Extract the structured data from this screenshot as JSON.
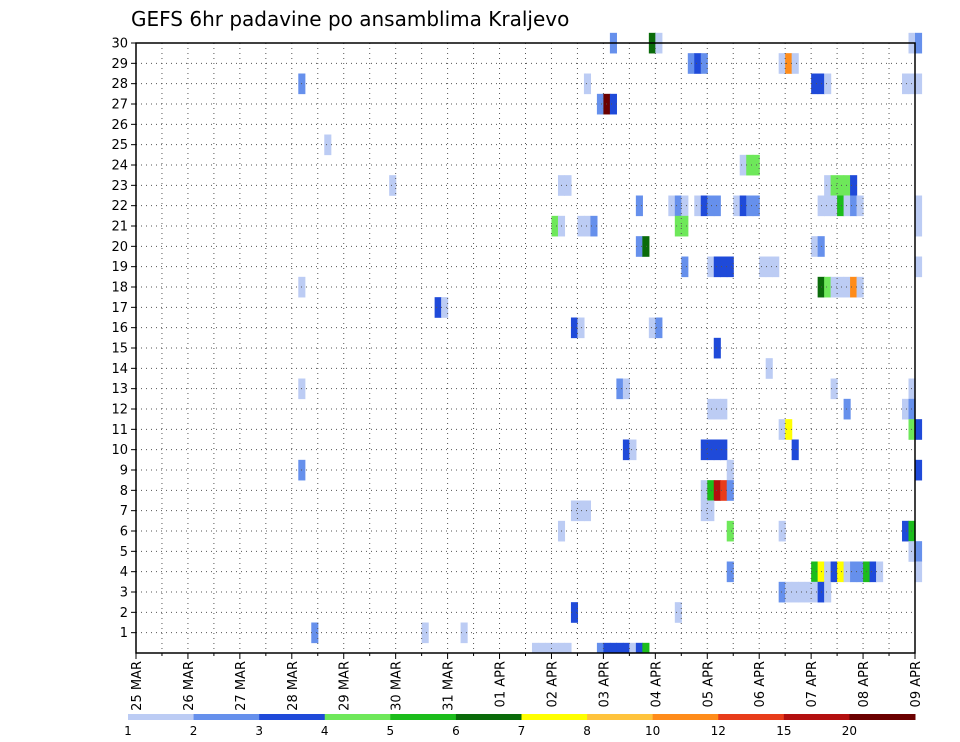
{
  "chart_data": {
    "type": "heatmap",
    "title": "GEFS 6hr padavine po ansamblima Kraljevo",
    "x_ticks": [
      "25 MAR",
      "26 MAR",
      "27 MAR",
      "28 MAR",
      "29 MAR",
      "30 MAR",
      "31 MAR",
      "01 APR",
      "02 APR",
      "03 APR",
      "04 APR",
      "05 APR",
      "06 APR",
      "07 APR",
      "08 APR",
      "09 APR"
    ],
    "y_ticks": [
      "1",
      "2",
      "3",
      "4",
      "5",
      "6",
      "7",
      "8",
      "9",
      "10",
      "11",
      "12",
      "13",
      "14",
      "15",
      "16",
      "17",
      "18",
      "19",
      "20",
      "21",
      "22",
      "23",
      "24",
      "25",
      "26",
      "27",
      "28",
      "29",
      "30"
    ],
    "ylim": [
      0,
      30
    ],
    "time_steps_per_day": 4,
    "n_days": 15,
    "grid": "dotted",
    "colorbar": {
      "labels": [
        "1",
        "2",
        "3",
        "4",
        "5",
        "6",
        "7",
        "8",
        "10",
        "12",
        "15",
        "20"
      ],
      "colors": [
        "#bcccf4",
        "#6690ec",
        "#1f4ad9",
        "#6ee85a",
        "#1cbd1c",
        "#0a6b0a",
        "#ffff00",
        "#ffc33c",
        "#ff8c1a",
        "#e83c1a",
        "#b30f0f",
        "#6b0000"
      ]
    },
    "levels": [
      "1-2",
      "2-3",
      "3-4",
      "4-5",
      "5-6",
      "6-7",
      "7-8",
      "8-10",
      "10-12",
      "12-15",
      "15-20",
      ">20"
    ],
    "cells": [
      [
        30,
        73,
        1
      ],
      [
        30,
        79,
        5
      ],
      [
        30,
        80,
        0
      ],
      [
        30,
        119,
        0
      ],
      [
        30,
        120,
        1
      ],
      [
        29,
        85,
        1
      ],
      [
        29,
        86,
        2
      ],
      [
        29,
        87,
        1
      ],
      [
        29,
        99,
        0
      ],
      [
        29,
        100,
        8
      ],
      [
        29,
        101,
        0
      ],
      [
        28,
        25,
        1
      ],
      [
        28,
        69,
        0
      ],
      [
        28,
        104,
        2
      ],
      [
        28,
        105,
        2
      ],
      [
        28,
        106,
        0
      ],
      [
        28,
        118,
        0
      ],
      [
        28,
        119,
        0
      ],
      [
        28,
        120,
        0
      ],
      [
        27,
        71,
        1
      ],
      [
        27,
        72,
        11
      ],
      [
        27,
        73,
        2
      ],
      [
        25,
        29,
        0
      ],
      [
        24,
        93,
        0
      ],
      [
        24,
        94,
        3
      ],
      [
        24,
        95,
        3
      ],
      [
        23,
        39,
        0
      ],
      [
        23,
        65,
        0
      ],
      [
        23,
        66,
        0
      ],
      [
        23,
        106,
        0
      ],
      [
        23,
        107,
        3
      ],
      [
        23,
        108,
        3
      ],
      [
        23,
        109,
        3
      ],
      [
        23,
        110,
        2
      ],
      [
        22,
        77,
        1
      ],
      [
        22,
        82,
        0
      ],
      [
        22,
        83,
        1
      ],
      [
        22,
        84,
        0
      ],
      [
        22,
        86,
        0
      ],
      [
        22,
        87,
        2
      ],
      [
        22,
        88,
        1
      ],
      [
        22,
        89,
        1
      ],
      [
        22,
        92,
        0
      ],
      [
        22,
        93,
        2
      ],
      [
        22,
        94,
        1
      ],
      [
        22,
        95,
        1
      ],
      [
        22,
        105,
        0
      ],
      [
        22,
        106,
        0
      ],
      [
        22,
        107,
        0
      ],
      [
        22,
        108,
        4
      ],
      [
        22,
        109,
        0
      ],
      [
        22,
        110,
        1
      ],
      [
        22,
        111,
        0
      ],
      [
        22,
        120,
        0
      ],
      [
        21,
        64,
        3
      ],
      [
        21,
        65,
        0
      ],
      [
        21,
        68,
        0
      ],
      [
        21,
        69,
        0
      ],
      [
        21,
        70,
        1
      ],
      [
        21,
        83,
        3
      ],
      [
        21,
        84,
        3
      ],
      [
        21,
        120,
        0
      ],
      [
        20,
        77,
        1
      ],
      [
        20,
        78,
        5
      ],
      [
        20,
        104,
        0
      ],
      [
        20,
        105,
        1
      ],
      [
        19,
        84,
        1
      ],
      [
        19,
        88,
        0
      ],
      [
        19,
        89,
        2
      ],
      [
        19,
        90,
        2
      ],
      [
        19,
        91,
        2
      ],
      [
        19,
        96,
        0
      ],
      [
        19,
        97,
        0
      ],
      [
        19,
        98,
        0
      ],
      [
        19,
        120,
        0
      ],
      [
        18,
        25,
        0
      ],
      [
        18,
        105,
        5
      ],
      [
        18,
        106,
        3
      ],
      [
        18,
        107,
        0
      ],
      [
        18,
        108,
        0
      ],
      [
        18,
        109,
        0
      ],
      [
        18,
        110,
        8
      ],
      [
        18,
        111,
        0
      ],
      [
        17,
        46,
        2
      ],
      [
        17,
        47,
        0
      ],
      [
        16,
        67,
        2
      ],
      [
        16,
        68,
        0
      ],
      [
        16,
        79,
        0
      ],
      [
        16,
        80,
        1
      ],
      [
        15,
        89,
        2
      ],
      [
        14,
        97,
        0
      ],
      [
        13,
        25,
        0
      ],
      [
        13,
        74,
        1
      ],
      [
        13,
        75,
        0
      ],
      [
        13,
        107,
        0
      ],
      [
        13,
        119,
        0
      ],
      [
        12,
        88,
        0
      ],
      [
        12,
        89,
        0
      ],
      [
        12,
        90,
        0
      ],
      [
        12,
        109,
        1
      ],
      [
        12,
        118,
        0
      ],
      [
        12,
        119,
        1
      ],
      [
        11,
        99,
        0
      ],
      [
        11,
        100,
        6
      ],
      [
        11,
        119,
        3
      ],
      [
        11,
        120,
        2
      ],
      [
        10,
        75,
        2
      ],
      [
        10,
        76,
        0
      ],
      [
        10,
        87,
        2
      ],
      [
        10,
        88,
        2
      ],
      [
        10,
        89,
        2
      ],
      [
        10,
        90,
        2
      ],
      [
        10,
        101,
        2
      ],
      [
        9,
        25,
        1
      ],
      [
        9,
        91,
        0
      ],
      [
        9,
        120,
        2
      ],
      [
        8,
        87,
        0
      ],
      [
        8,
        88,
        4
      ],
      [
        8,
        89,
        10
      ],
      [
        8,
        90,
        9
      ],
      [
        8,
        91,
        1
      ],
      [
        7,
        67,
        0
      ],
      [
        7,
        68,
        0
      ],
      [
        7,
        69,
        0
      ],
      [
        7,
        87,
        0
      ],
      [
        7,
        88,
        0
      ],
      [
        6,
        65,
        0
      ],
      [
        6,
        91,
        3
      ],
      [
        6,
        99,
        0
      ],
      [
        6,
        118,
        2
      ],
      [
        6,
        119,
        4
      ],
      [
        5,
        119,
        0
      ],
      [
        5,
        120,
        1
      ],
      [
        4,
        91,
        1
      ],
      [
        4,
        104,
        4
      ],
      [
        4,
        105,
        6
      ],
      [
        4,
        106,
        0
      ],
      [
        4,
        107,
        2
      ],
      [
        4,
        108,
        6
      ],
      [
        4,
        109,
        0
      ],
      [
        4,
        110,
        1
      ],
      [
        4,
        111,
        1
      ],
      [
        4,
        112,
        4
      ],
      [
        4,
        113,
        2
      ],
      [
        4,
        114,
        0
      ],
      [
        4,
        120,
        0
      ],
      [
        3,
        99,
        1
      ],
      [
        3,
        100,
        0
      ],
      [
        3,
        101,
        0
      ],
      [
        3,
        102,
        0
      ],
      [
        3,
        103,
        0
      ],
      [
        3,
        104,
        0
      ],
      [
        3,
        105,
        2
      ],
      [
        3,
        106,
        0
      ],
      [
        2,
        67,
        2
      ],
      [
        2,
        83,
        0
      ],
      [
        1,
        27,
        1
      ],
      [
        1,
        44,
        0
      ],
      [
        1,
        50,
        0
      ]
    ],
    "bottom_cells": [
      [
        61,
        0
      ],
      [
        62,
        0
      ],
      [
        63,
        0
      ],
      [
        64,
        0
      ],
      [
        65,
        0
      ],
      [
        66,
        0
      ],
      [
        71,
        1
      ],
      [
        72,
        2
      ],
      [
        73,
        2
      ],
      [
        74,
        2
      ],
      [
        75,
        2
      ],
      [
        76,
        0
      ],
      [
        77,
        2
      ],
      [
        78,
        4
      ]
    ]
  }
}
